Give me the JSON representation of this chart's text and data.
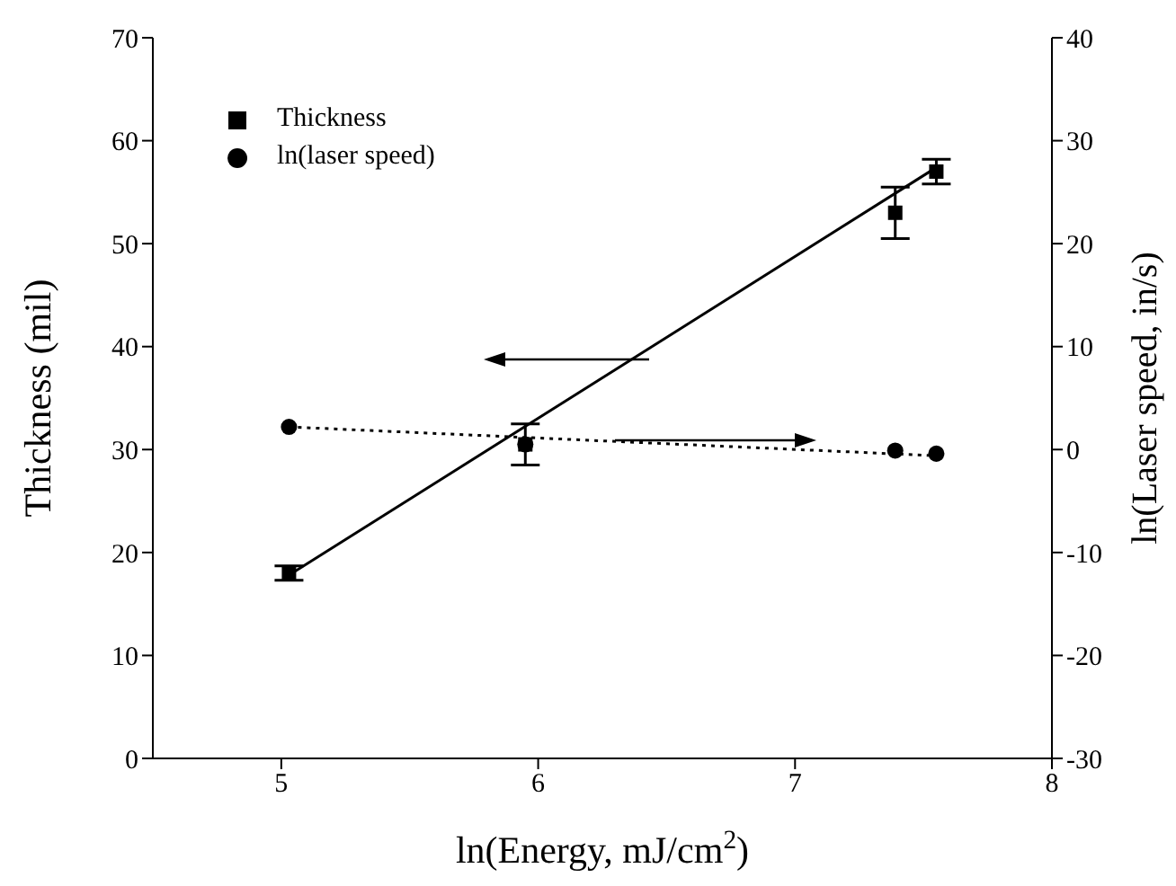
{
  "chart_data": {
    "type": "scatter",
    "xlabel": "ln(Energy, mJ/cm$^{2}$)",
    "ylabel": "Thickness (mil)",
    "y2label": "ln(Laser speed, in/s)",
    "xlim": [
      4.5,
      8
    ],
    "xticks": [
      5,
      6,
      7,
      8
    ],
    "ylim": [
      0,
      70
    ],
    "yticks": [
      0,
      10,
      20,
      30,
      40,
      50,
      60,
      70
    ],
    "y2lim": [
      -30,
      40
    ],
    "y2ticks": [
      -30,
      -20,
      -10,
      0,
      10,
      20,
      30,
      40
    ],
    "legend": "top left",
    "grid": false,
    "series": [
      {
        "name": "Thickness",
        "type": "scatter",
        "marker": "square",
        "color": "#000000",
        "x": [
          5.03,
          5.95,
          7.39,
          7.55
        ],
        "values": [
          18,
          30.5,
          53,
          57
        ],
        "errors": [
          0.7,
          2,
          2.5,
          1.2
        ]
      },
      {
        "name": "ln(laser speed)",
        "type": "scatter",
        "marker": "circle",
        "color": "#000000",
        "axis": "y2",
        "x": [
          5.03,
          5.95,
          7.39,
          7.55
        ],
        "values": [
          2.2,
          0.5,
          -0.1,
          -0.4
        ]
      },
      {
        "type": "line",
        "line_style": "solid",
        "marker": "none",
        "color": "#000000",
        "x": [
          5.03,
          7.55
        ],
        "values": [
          17.8,
          57.4
        ]
      },
      {
        "type": "line",
        "line_style": "dotted",
        "marker": "none",
        "color": "#000000",
        "axis": "y2",
        "x": [
          5.03,
          7.55
        ],
        "values": [
          2.2,
          -0.6
        ]
      }
    ]
  }
}
